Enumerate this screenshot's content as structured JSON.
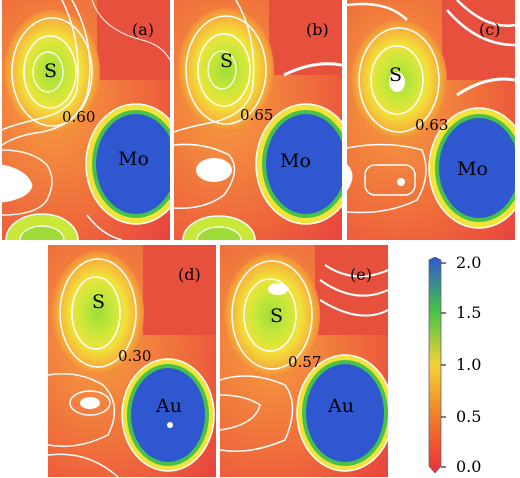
{
  "panels": [
    {
      "tag": "(a)",
      "atom_top": "S",
      "atom_bottom": "Mo",
      "value": "0.60"
    },
    {
      "tag": "(b)",
      "atom_top": "S",
      "atom_bottom": "Mo",
      "value": "0.65"
    },
    {
      "tag": "(c)",
      "atom_top": "S",
      "atom_bottom": "Mo",
      "value": "0.63"
    },
    {
      "tag": "(d)",
      "atom_top": "S",
      "atom_bottom": "Au",
      "value": "0.30"
    },
    {
      "tag": "(e)",
      "atom_top": "S",
      "atom_bottom": "Au",
      "value": "0.57"
    }
  ],
  "colorbar": {
    "ticks": [
      "2.0",
      "1.5",
      "1.0",
      "0.5",
      "0.0"
    ],
    "range": [
      0.0,
      2.0
    ],
    "colors": [
      "#e8303a",
      "#f07a2c",
      "#f4d236",
      "#46c24a",
      "#2f58d0"
    ]
  }
}
